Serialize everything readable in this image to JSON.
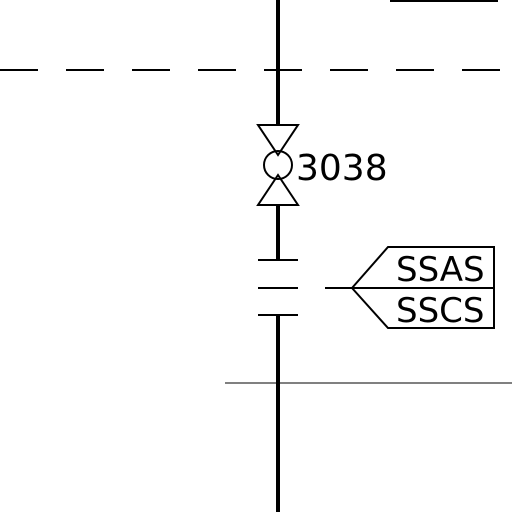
{
  "valve": {
    "tag": "3038"
  },
  "instrument_tags": {
    "upper": "SSAS",
    "lower": "SSCS"
  },
  "colors": {
    "ink": "#000000",
    "background": "#ffffff"
  }
}
